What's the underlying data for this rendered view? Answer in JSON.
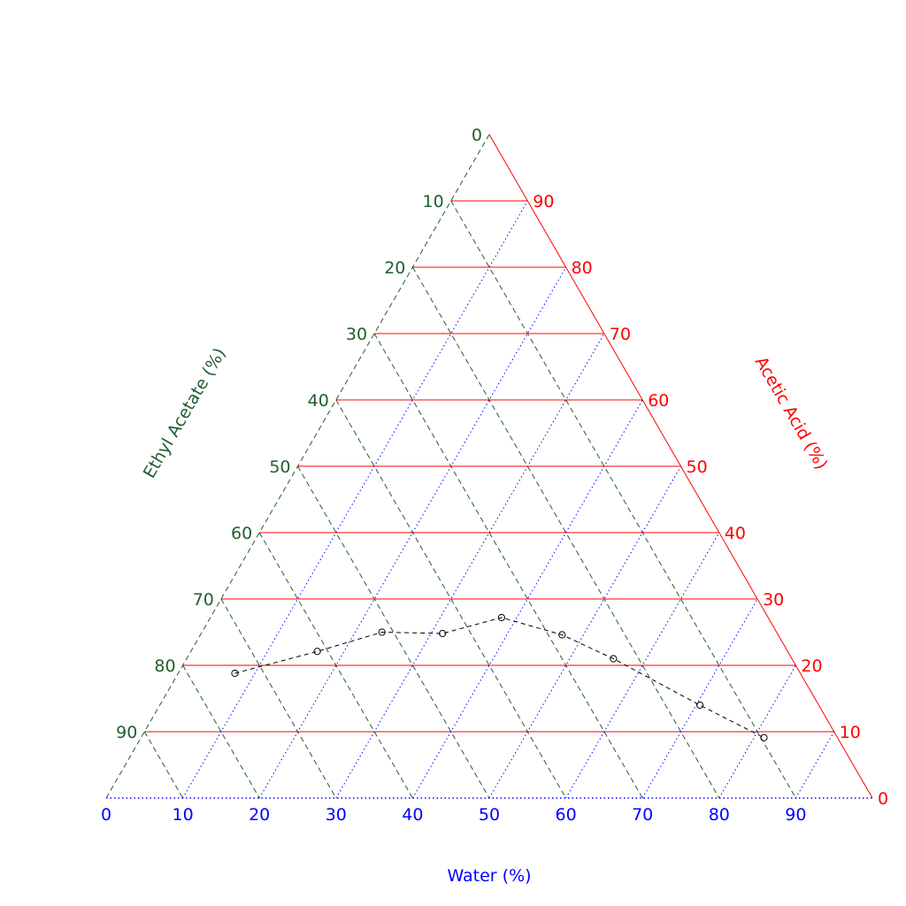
{
  "chart_data": {
    "type": "scatter",
    "subtype": "ternary",
    "axes": {
      "bottom": {
        "label": "Water (%)",
        "ticks": [
          "0",
          "10",
          "20",
          "30",
          "40",
          "50",
          "60",
          "70",
          "80",
          "90"
        ],
        "color": "#0000ff",
        "grid_style": "dotted"
      },
      "left": {
        "label": "Ethyl Acetate (%)",
        "ticks": [
          "0",
          "10",
          "20",
          "30",
          "40",
          "50",
          "60",
          "70",
          "80",
          "90"
        ],
        "color": "#1f5f2f",
        "grid_style": "dashed"
      },
      "right": {
        "label": "Acetic Acid (%)",
        "ticks": [
          "0",
          "10",
          "20",
          "30",
          "40",
          "50",
          "60",
          "70",
          "80",
          "90"
        ],
        "color": "#ff0000",
        "grid_style": "solid"
      },
      "range": [
        0,
        100
      ],
      "grid": true
    },
    "series": [
      {
        "line_style": "dashed",
        "line_color": "#000000",
        "marker": "open-circle",
        "points": [
          {
            "water": 7.4,
            "acid": 18.8
          },
          {
            "water": 16.5,
            "acid": 22.1
          },
          {
            "water": 23.5,
            "acid": 25.0
          },
          {
            "water": 31.5,
            "acid": 24.8
          },
          {
            "water": 38.0,
            "acid": 27.2
          },
          {
            "water": 47.2,
            "acid": 24.6
          },
          {
            "water": 55.7,
            "acid": 21.0
          },
          {
            "water": 70.5,
            "acid": 14.0
          },
          {
            "water": 81.3,
            "acid": 9.1
          }
        ]
      }
    ]
  }
}
